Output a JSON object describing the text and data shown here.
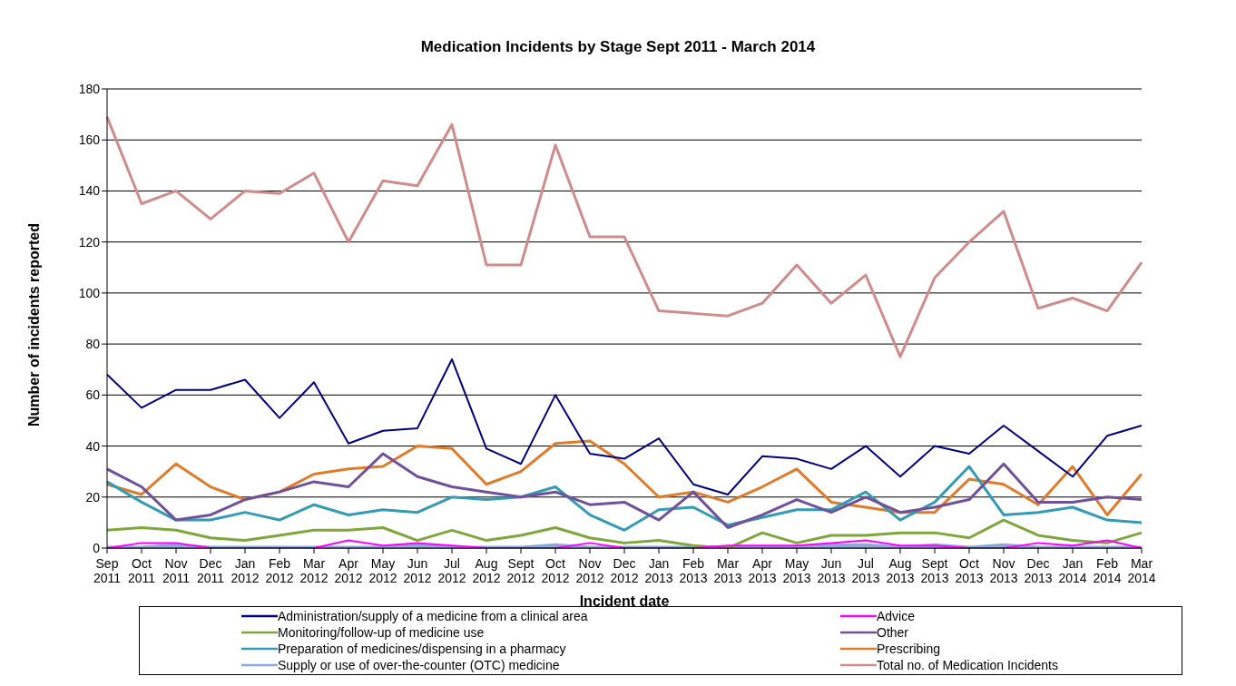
{
  "chart_data": {
    "type": "line",
    "title": "Medication Incidents by Stage Sept 2011 - March 2014",
    "xlabel": "Incident date",
    "ylabel": "Number of incidents reported",
    "categories": [
      "Sep 2011",
      "Oct 2011",
      "Nov 2011",
      "Dec 2011",
      "Jan 2012",
      "Feb 2012",
      "Mar 2012",
      "Apr 2012",
      "May 2012",
      "Jun 2012",
      "Jul 2012",
      "Aug 2012",
      "Sept 2012",
      "Oct 2012",
      "Nov 2012",
      "Dec 2012",
      "Jan 2013",
      "Feb 2013",
      "Mar 2013",
      "Apr 2013",
      "May 2013",
      "Jun 2013",
      "Jul 2013",
      "Aug 2013",
      "Sept 2013",
      "Oct 2013",
      "Nov 2013",
      "Dec 2013",
      "Jan 2014",
      "Feb 2014",
      "Mar 2014"
    ],
    "series": [
      {
        "name": "Administration/supply of a medicine from a clinical area",
        "color": "#000080",
        "values": [
          68,
          55,
          62,
          62,
          66,
          51,
          65,
          41,
          46,
          47,
          74,
          39,
          33,
          60,
          37,
          35,
          43,
          25,
          21,
          36,
          35,
          31,
          40,
          28,
          40,
          37,
          48,
          38,
          28,
          44,
          48
        ]
      },
      {
        "name": "Advice",
        "color": "#ff00ff",
        "values": [
          0,
          2,
          2,
          0,
          0,
          0,
          0,
          3,
          1,
          2,
          1,
          0,
          0,
          0,
          2,
          0,
          0,
          0,
          1,
          1,
          1,
          2,
          3,
          1,
          1,
          0,
          0,
          2,
          1,
          3,
          0
        ]
      },
      {
        "name": "Monitoring/follow-up of medicine use",
        "color": "#7ea63a",
        "values": [
          7,
          8,
          7,
          4,
          3,
          5,
          7,
          7,
          8,
          3,
          7,
          3,
          5,
          8,
          4,
          2,
          3,
          1,
          0,
          6,
          2,
          5,
          5,
          6,
          6,
          4,
          11,
          5,
          3,
          2,
          6
        ]
      },
      {
        "name": "Other",
        "color": "#70509a",
        "values": [
          31,
          24,
          11,
          13,
          19,
          22,
          26,
          24,
          37,
          28,
          24,
          22,
          20,
          22,
          17,
          18,
          11,
          22,
          8,
          13,
          19,
          14,
          20,
          14,
          16,
          19,
          33,
          18,
          18,
          20,
          19
        ]
      },
      {
        "name": "Preparation of medicines/dispensing in a pharmacy",
        "color": "#339bb3",
        "values": [
          26,
          18,
          11,
          11,
          14,
          11,
          17,
          13,
          15,
          14,
          20,
          19,
          20,
          24,
          13,
          7,
          15,
          16,
          9,
          12,
          15,
          15,
          22,
          11,
          18,
          32,
          13,
          14,
          16,
          11,
          10
        ]
      },
      {
        "name": "Prescribing",
        "color": "#e07b2a",
        "values": [
          25,
          21,
          33,
          24,
          19,
          22,
          29,
          31,
          32,
          40,
          39,
          25,
          30,
          41,
          42,
          33,
          20,
          22,
          18,
          24,
          31,
          18,
          16,
          14,
          14,
          27,
          25,
          17,
          32,
          13,
          29
        ]
      },
      {
        "name": "Supply or use of over-the-counter (OTC) medicine",
        "color": "#8fa8dc",
        "values": [
          0,
          0,
          1,
          0,
          0,
          0,
          0,
          0,
          0,
          1,
          0,
          0,
          0,
          1,
          0,
          0,
          0,
          0,
          0,
          0,
          0,
          1,
          1,
          0,
          1,
          0,
          1,
          0,
          0,
          0,
          0
        ]
      },
      {
        "name": "Total no. of Medication Incidents",
        "color": "#d08b8b",
        "values": [
          169,
          135,
          140,
          129,
          140,
          139,
          147,
          120,
          144,
          142,
          166,
          111,
          111,
          158,
          122,
          122,
          93,
          92,
          91,
          96,
          111,
          96,
          107,
          75,
          106,
          120,
          132,
          94,
          98,
          93,
          112
        ]
      }
    ],
    "ylim": [
      0,
      180
    ],
    "yticks": [
      0,
      20,
      40,
      60,
      80,
      100,
      120,
      140,
      160,
      180
    ],
    "grid": "y",
    "legend": "bottom",
    "marker": "none",
    "line_style": "solid"
  }
}
